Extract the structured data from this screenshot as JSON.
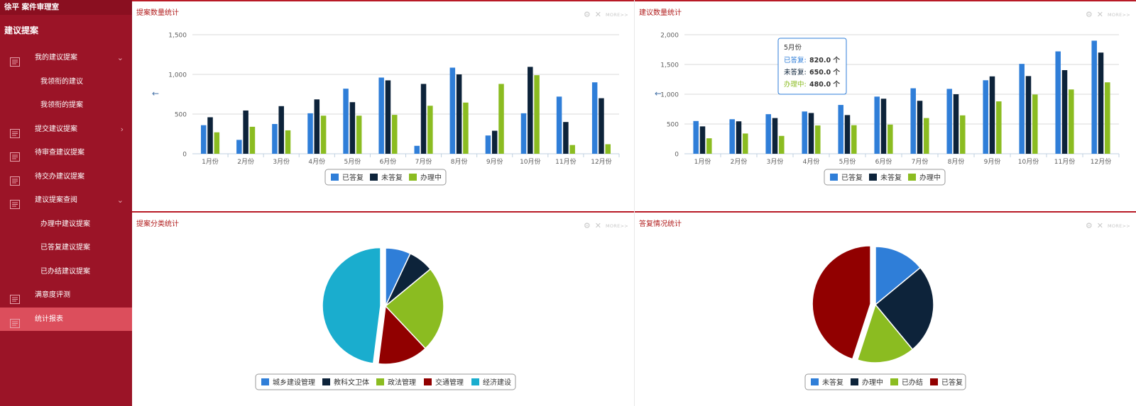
{
  "sidebar": {
    "topbar_title": "徐平 案件审理室",
    "section_title": "建议提案",
    "items": [
      {
        "label": "我的建议提案",
        "chevron": "⌄"
      },
      {
        "label": "我领衔的建议"
      },
      {
        "label": "我领衔的提案"
      },
      {
        "label": "提交建议提案",
        "chevron": "›"
      },
      {
        "label": "待审查建议提案"
      },
      {
        "label": "待交办建议提案"
      },
      {
        "label": "建议提案查阅",
        "chevron": "⌄"
      },
      {
        "label": "办理中建议提案"
      },
      {
        "label": "已答复建议提案"
      },
      {
        "label": "已办结建议提案"
      },
      {
        "label": "满意度评测"
      },
      {
        "label": "统计报表"
      }
    ]
  },
  "panels": {
    "p1_title": "提案数量统计",
    "p2_title": "建议数量统计",
    "p3_title": "提案分类统计",
    "p4_title": "答复情况统计",
    "more_label": "MORE>>"
  },
  "tooltip": {
    "month": "5月份",
    "rows": [
      {
        "label": "已答复:",
        "value": "820.0 个",
        "color": "#2f7ed8"
      },
      {
        "label": "未答复:",
        "value": "650.0 个",
        "color": "#0d233a"
      },
      {
        "label": "办理中:",
        "value": "480.0 个",
        "color": "#8bbc21"
      }
    ]
  },
  "chart_data": [
    {
      "type": "bar",
      "title": "提案数量统计",
      "categories": [
        "1月份",
        "2月份",
        "3月份",
        "4月份",
        "5月份",
        "6月份",
        "7月份",
        "8月份",
        "9月份",
        "10月份",
        "11月份",
        "12月份"
      ],
      "ylim": [
        0,
        1500
      ],
      "yticks": [
        "0",
        "500",
        "1,000",
        "1,500"
      ],
      "grid": true,
      "legend_position": "bottom",
      "series": [
        {
          "name": "已答复",
          "color": "#2f7ed8",
          "values": [
            360,
            175,
            375,
            510,
            820,
            960,
            100,
            1085,
            230,
            510,
            720,
            900
          ]
        },
        {
          "name": "未答复",
          "color": "#0d233a",
          "values": [
            460,
            545,
            600,
            685,
            650,
            925,
            880,
            1000,
            290,
            1095,
            400,
            700
          ]
        },
        {
          "name": "办理中",
          "color": "#8bbc21",
          "values": [
            270,
            340,
            295,
            480,
            480,
            490,
            605,
            645,
            880,
            990,
            110,
            120
          ]
        }
      ]
    },
    {
      "type": "bar",
      "title": "建议数量统计",
      "categories": [
        "1月份",
        "2月份",
        "3月份",
        "4月份",
        "5月份",
        "6月份",
        "7月份",
        "8月份",
        "9月份",
        "10月份",
        "11月份",
        "12月份"
      ],
      "ylim": [
        0,
        2000
      ],
      "yticks": [
        "0",
        "500",
        "1,000",
        "1,500",
        "2,000"
      ],
      "grid": true,
      "legend_position": "bottom",
      "series": [
        {
          "name": "已答复",
          "color": "#2f7ed8",
          "values": [
            550,
            580,
            665,
            710,
            820,
            960,
            1100,
            1090,
            1235,
            1510,
            1720,
            1900
          ]
        },
        {
          "name": "未答复",
          "color": "#0d233a",
          "values": [
            460,
            545,
            600,
            685,
            650,
            925,
            890,
            1000,
            1300,
            1305,
            1405,
            1700
          ]
        },
        {
          "name": "办理中",
          "color": "#8bbc21",
          "values": [
            260,
            340,
            300,
            475,
            480,
            490,
            600,
            645,
            880,
            995,
            1080,
            1200
          ]
        }
      ]
    },
    {
      "type": "pie",
      "title": "提案分类统计",
      "legend_position": "bottom",
      "slices": [
        {
          "name": "城乡建设管理",
          "value": 7,
          "color": "#2f7ed8"
        },
        {
          "name": "教科文卫体",
          "value": 7,
          "color": "#0d233a"
        },
        {
          "name": "政法管理",
          "value": 24,
          "color": "#8bbc21"
        },
        {
          "name": "交通管理",
          "value": 14,
          "color": "#910000"
        },
        {
          "name": "经济建设",
          "value": 48,
          "color": "#1aadce",
          "sliced": true
        }
      ]
    },
    {
      "type": "pie",
      "title": "答复情况统计",
      "legend_position": "bottom",
      "slices": [
        {
          "name": "未答复",
          "value": 14,
          "color": "#2f7ed8"
        },
        {
          "name": "办理中",
          "value": 25,
          "color": "#0d233a"
        },
        {
          "name": "已办结",
          "value": 16,
          "color": "#8bbc21"
        },
        {
          "name": "已答复",
          "value": 45,
          "color": "#910000",
          "sliced": true
        }
      ]
    }
  ]
}
